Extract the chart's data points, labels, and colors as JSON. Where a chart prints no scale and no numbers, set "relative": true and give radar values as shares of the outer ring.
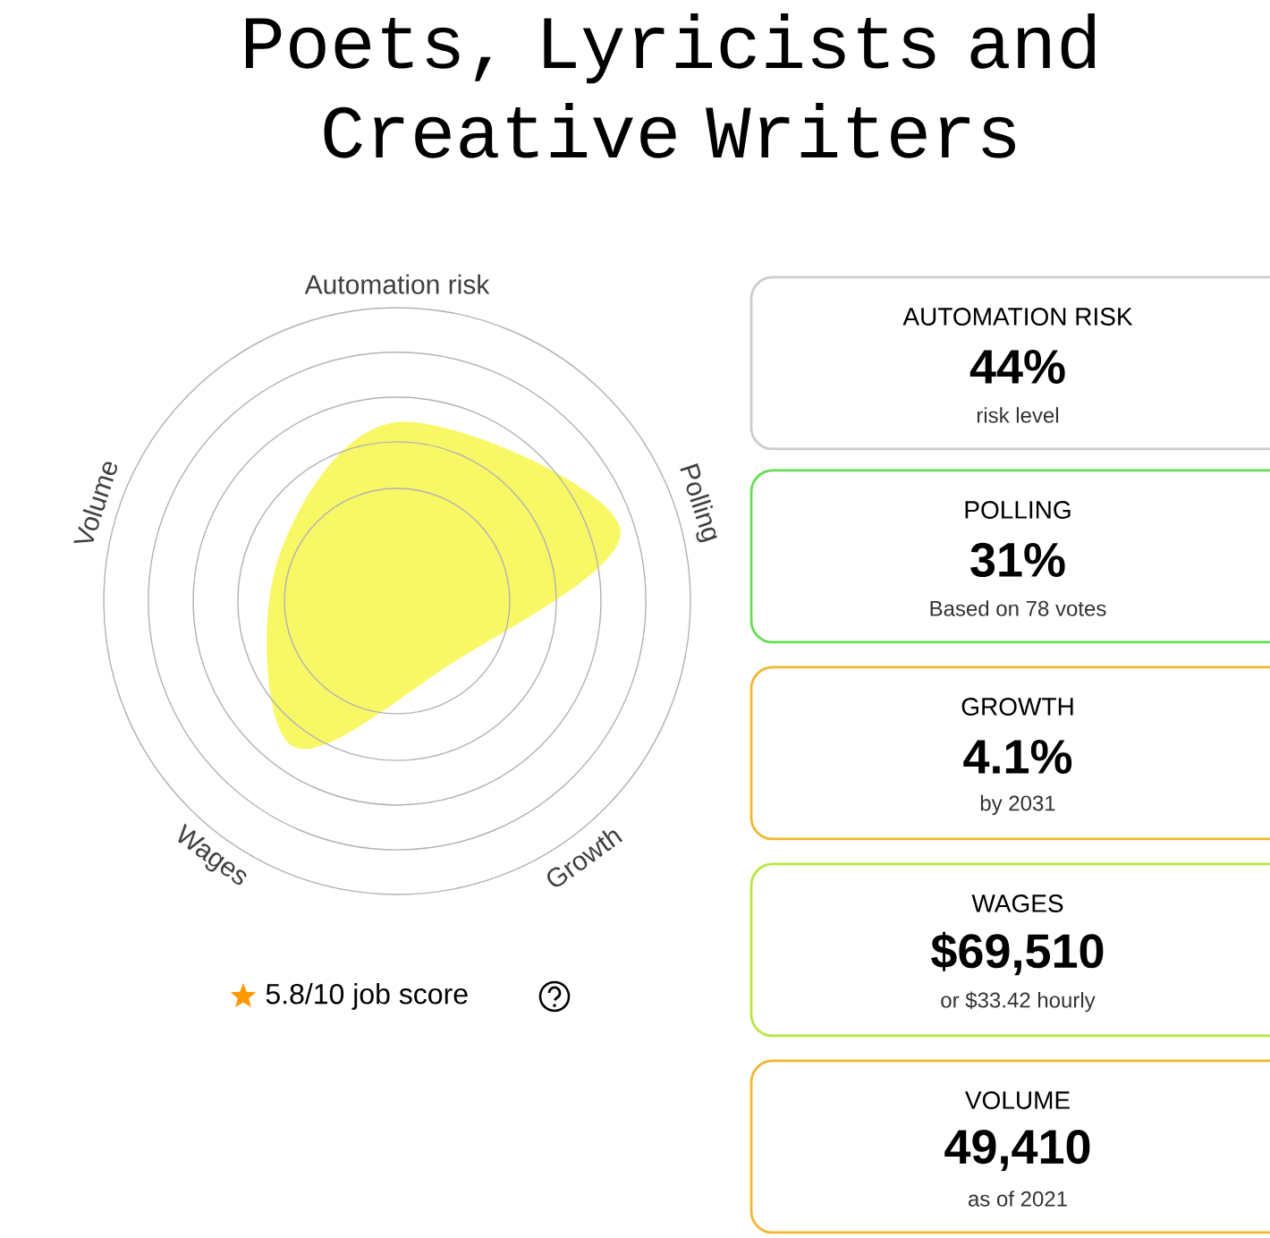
{
  "chart_data": [
    {
      "type": "radar",
      "title": "Poets, Lyricists and Creative Writers",
      "categories": [
        "Automation risk",
        "Polling",
        "Growth",
        "Wages",
        "Volume"
      ],
      "relative": true,
      "grid": true,
      "series": [
        {
          "color": "#f8f866",
          "values": [
            0.61,
            0.8,
            0.28,
            0.61,
            0.43
          ]
        }
      ],
      "annotations": [
        "5.8/10 job score"
      ]
    },
    {
      "type": "other",
      "colors": [
        "#cccccc",
        "#66dd55",
        "#f0b830",
        "#b8e840",
        "#f0b830"
      ],
      "annotations": [
        "AUTOMATION RISK",
        "44%",
        "risk level",
        "POLLING",
        "31%",
        "Based on 78 votes",
        "GROWTH",
        "4.1%",
        "by 2031",
        "WAGES",
        "$69,510",
        "or $33.42 hourly",
        "VOLUME",
        "49,410",
        "as of 2021"
      ]
    }
  ]
}
